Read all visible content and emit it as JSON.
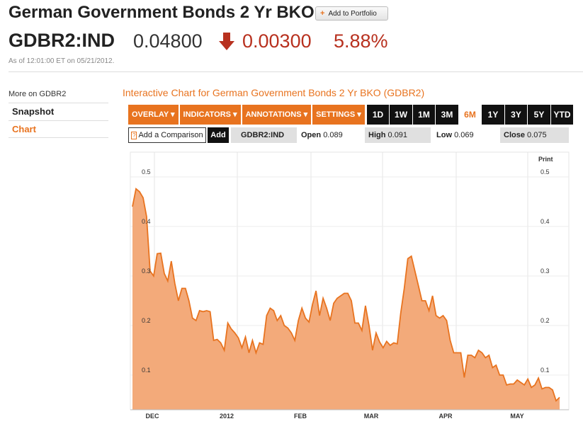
{
  "header": {
    "title": "German Government Bonds 2 Yr BKO",
    "portfolio_button": "Add to Portfolio",
    "ticker": "GDBR2:IND",
    "price": "0.04800",
    "change": "0.00300",
    "change_pct": "5.88%",
    "as_of": "As of 12:01:00 ET on 05/21/2012.",
    "down_color": "#b8311f"
  },
  "sidebar": {
    "heading": "More on GDBR2",
    "items": [
      {
        "label": "Snapshot",
        "active": false
      },
      {
        "label": "Chart",
        "active": true
      }
    ]
  },
  "chart_panel": {
    "title": "Interactive Chart for German Government Bonds 2 Yr BKO (GDBR2)",
    "menus": [
      "OVERLAY ▾",
      "INDICATORS ▾",
      "ANNOTATIONS ▾",
      "SETTINGS ▾"
    ],
    "ranges": [
      "1D",
      "1W",
      "1M",
      "3M",
      "6M",
      "1Y",
      "3Y",
      "5Y",
      "YTD"
    ],
    "active_range": "6M",
    "compare_label": "Add a Comparison",
    "compare_help": "?",
    "add_label": "Add",
    "symbol": "GDBR2:IND",
    "open_label": "Open",
    "open_value": "0.089",
    "high_label": "High",
    "high_value": "0.091",
    "low_label": "Low",
    "low_value": "0.069",
    "close_label": "Close",
    "close_value": "0.075",
    "print_label": "Print",
    "accent_color": "#e8731f",
    "fill_color": "#f3aa7a"
  },
  "chart_data": {
    "type": "area",
    "ylim": [
      0.03,
      0.55
    ],
    "yticks": [
      0.1,
      0.2,
      0.3,
      0.4,
      0.5
    ],
    "ytick_labels": [
      "0.1",
      "0.2",
      "0.3",
      "0.4",
      "0.5"
    ],
    "xticks": [
      "DEC",
      "2012",
      "FEB",
      "MAR",
      "APR",
      "MAY"
    ],
    "grid": true,
    "series": [
      {
        "values": [
          0.44,
          0.476,
          0.47,
          0.458,
          0.42,
          0.31,
          0.3,
          0.345,
          0.346,
          0.305,
          0.29,
          0.33,
          0.285,
          0.25,
          0.275,
          0.275,
          0.25,
          0.215,
          0.21,
          0.23,
          0.228,
          0.23,
          0.228,
          0.17,
          0.172,
          0.165,
          0.15,
          0.205,
          0.193,
          0.185,
          0.175,
          0.155,
          0.177,
          0.145,
          0.17,
          0.145,
          0.165,
          0.162,
          0.22,
          0.235,
          0.23,
          0.21,
          0.22,
          0.2,
          0.195,
          0.185,
          0.17,
          0.21,
          0.235,
          0.215,
          0.207,
          0.243,
          0.27,
          0.22,
          0.255,
          0.235,
          0.21,
          0.245,
          0.255,
          0.26,
          0.265,
          0.265,
          0.25,
          0.205,
          0.205,
          0.19,
          0.24,
          0.2,
          0.15,
          0.185,
          0.167,
          0.155,
          0.168,
          0.16,
          0.165,
          0.163,
          0.225,
          0.275,
          0.335,
          0.34,
          0.31,
          0.28,
          0.25,
          0.25,
          0.23,
          0.26,
          0.22,
          0.215,
          0.22,
          0.21,
          0.17,
          0.145,
          0.145,
          0.145,
          0.095,
          0.14,
          0.14,
          0.135,
          0.15,
          0.145,
          0.135,
          0.14,
          0.115,
          0.12,
          0.1,
          0.1,
          0.08,
          0.082,
          0.082,
          0.09,
          0.085,
          0.08,
          0.092,
          0.075,
          0.08,
          0.094,
          0.072,
          0.075,
          0.075,
          0.07,
          0.048,
          0.055
        ]
      }
    ]
  }
}
